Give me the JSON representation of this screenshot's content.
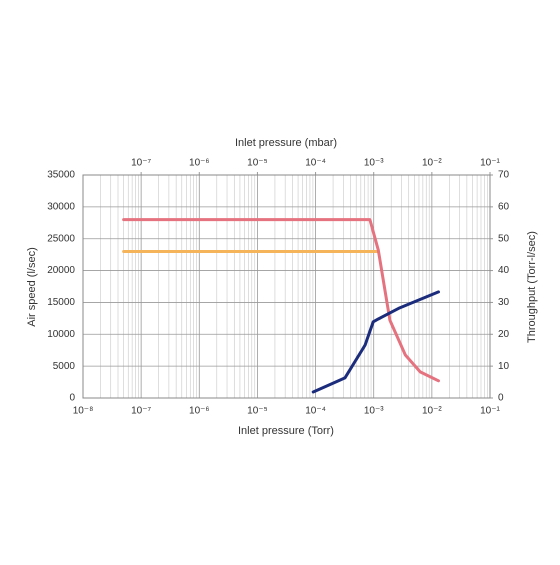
{
  "chart_data": {
    "type": "line",
    "x_label": "Inlet pressure (Torr)",
    "x2_label": "Inlet pressure (mbar)",
    "y_label": "Air speed (l/sec)",
    "y2_label": "Throughput (Torr-l/sec)",
    "xscale": "log",
    "grid": true,
    "minor_grid": true,
    "xlim": [
      1e-08,
      0.1
    ],
    "xticks": [
      {
        "value": 1e-08,
        "label": "10⁻⁸"
      },
      {
        "value": 1e-07,
        "label": "10⁻⁷"
      },
      {
        "value": 1e-06,
        "label": "10⁻⁶"
      },
      {
        "value": 1e-05,
        "label": "10⁻⁵"
      },
      {
        "value": 0.0001,
        "label": "10⁻⁴"
      },
      {
        "value": 0.001,
        "label": "10⁻³"
      },
      {
        "value": 0.01,
        "label": "10⁻²"
      },
      {
        "value": 0.1,
        "label": "10⁻¹"
      }
    ],
    "x2lim": [
      1e-08,
      0.1
    ],
    "x2ticks": [
      {
        "value": 1e-07,
        "label": "10⁻⁷"
      },
      {
        "value": 1e-06,
        "label": "10⁻⁶"
      },
      {
        "value": 1e-05,
        "label": "10⁻⁵"
      },
      {
        "value": 0.0001,
        "label": "10⁻⁴"
      },
      {
        "value": 0.001,
        "label": "10⁻³"
      },
      {
        "value": 0.01,
        "label": "10⁻²"
      },
      {
        "value": 0.1,
        "label": "10⁻¹"
      }
    ],
    "ylim": [
      0,
      35000
    ],
    "yticks": [
      0,
      5000,
      10000,
      15000,
      20000,
      25000,
      30000,
      35000
    ],
    "y2lim": [
      0,
      70
    ],
    "y2ticks": [
      0,
      10,
      20,
      30,
      40,
      50,
      60,
      70
    ],
    "series": [
      {
        "color": "#f5b35a",
        "x": [
          5e-08,
          0.0012
        ],
        "values": [
          23000,
          23000
        ]
      },
      {
        "color": "#e5727f",
        "x": [
          5e-08,
          0.00086,
          0.0012,
          0.0019,
          0.0035,
          0.0063,
          0.013
        ],
        "values": [
          28000,
          28000,
          23200,
          12200,
          6750,
          4100,
          2700
        ]
      },
      {
        "color": "#1c2c7c",
        "axis": "y2",
        "x": [
          9.1e-05,
          0.00032,
          0.00071,
          0.00098,
          0.0012,
          0.0028,
          0.013
        ],
        "values": [
          1.9,
          6.3,
          16.6,
          23.9,
          24.8,
          28.3,
          33.3
        ]
      }
    ]
  }
}
